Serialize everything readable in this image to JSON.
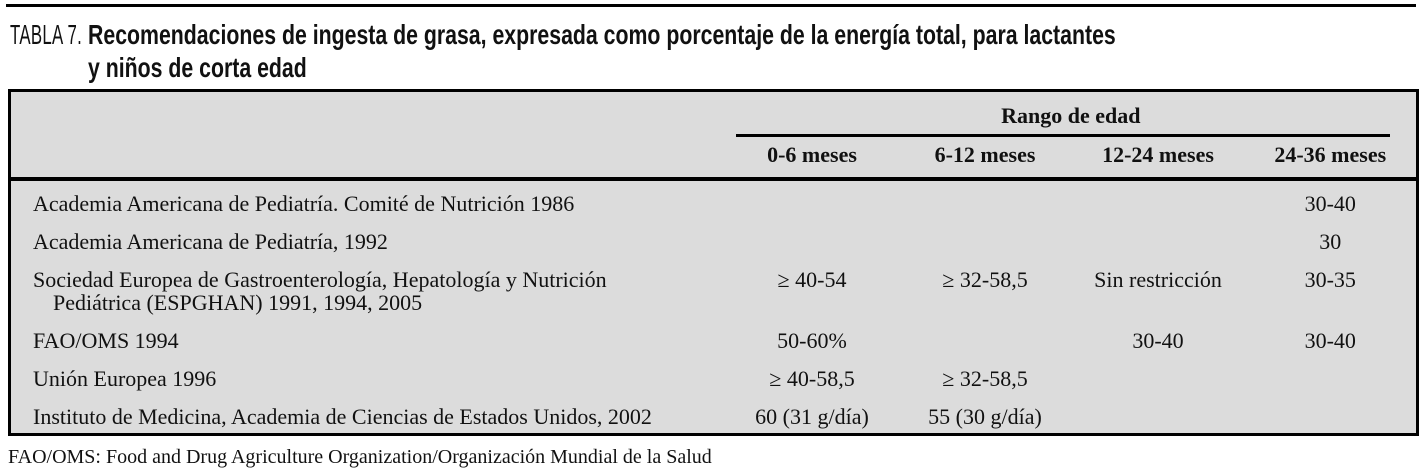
{
  "title": {
    "label": "TABLA 7.",
    "line1": "Recomendaciones de ingesta de grasa, expresada como porcentaje de la energía total, para lactantes",
    "line2": "y niños de corta edad"
  },
  "table": {
    "group_header": "Rango de edad",
    "columns": [
      "0-6 meses",
      "6-12 meses",
      "12-24 meses",
      "24-36 meses"
    ],
    "rows": [
      {
        "org": "Academia Americana de Pediatría. Comité de Nutrición 1986",
        "org2": "",
        "values": [
          "",
          "",
          "",
          "30-40"
        ]
      },
      {
        "org": "Academia Americana de Pediatría, 1992",
        "org2": "",
        "values": [
          "",
          "",
          "",
          "30"
        ]
      },
      {
        "org": "Sociedad Europea de Gastroenterología, Hepatología y Nutrición",
        "org2": "Pediátrica (ESPGHAN) 1991, 1994, 2005",
        "values": [
          "≥ 40-54",
          "≥ 32-58,5",
          "Sin restricción",
          "30-35"
        ]
      },
      {
        "org": "FAO/OMS 1994",
        "org2": "",
        "values": [
          "50-60%",
          "",
          "30-40",
          "30-40"
        ]
      },
      {
        "org": "Unión Europea 1996",
        "org2": "",
        "values": [
          "≥ 40-58,5",
          "≥ 32-58,5",
          "",
          ""
        ]
      },
      {
        "org": "Instituto de Medicina, Academia de Ciencias de Estados Unidos, 2002",
        "org2": "",
        "values": [
          "60 (31 g/día)",
          "55 (30 g/día)",
          "",
          ""
        ]
      }
    ]
  },
  "footnote": "FAO/OMS: Food and Drug Agriculture Organization/Organización Mundial de la Salud",
  "colors": {
    "table_background": "#dcdcdc",
    "rule": "#000000"
  }
}
